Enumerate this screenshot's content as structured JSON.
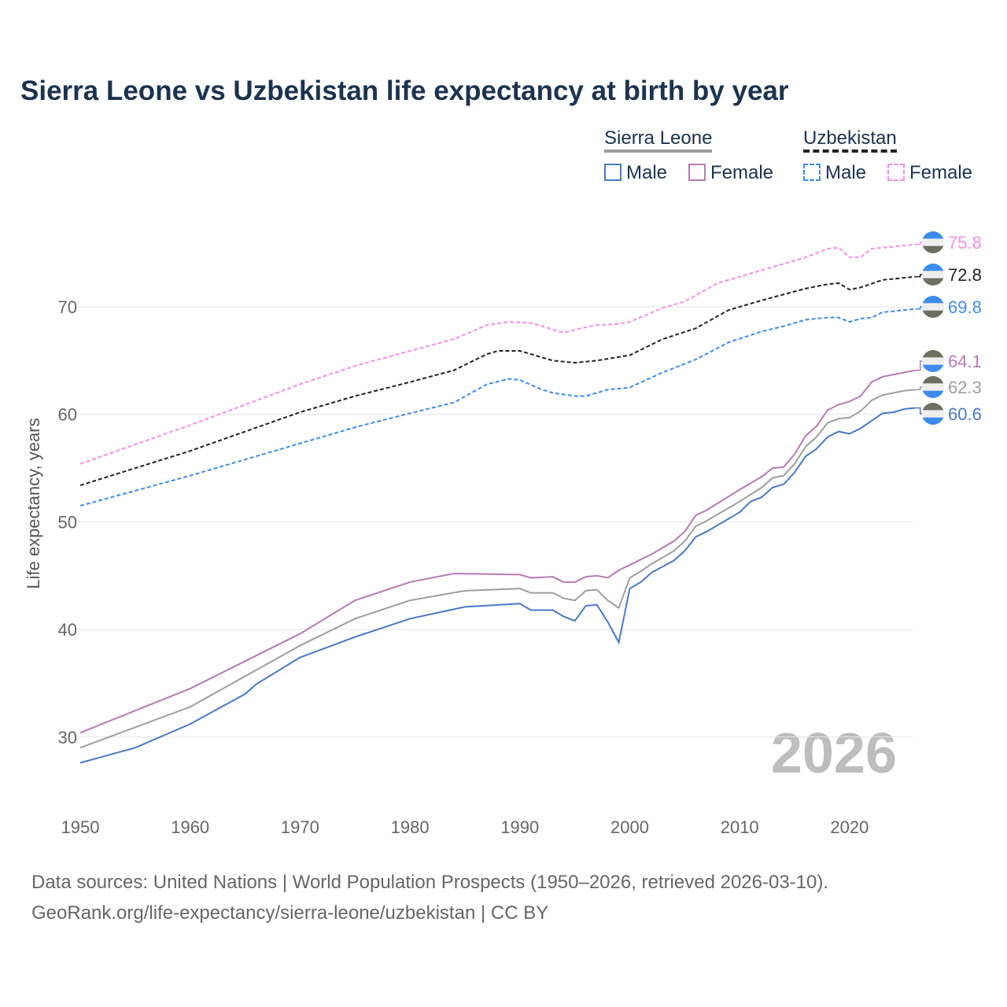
{
  "chart_data": {
    "type": "line",
    "title": "Sierra Leone vs Uzbekistan life expectancy at birth by year",
    "xlabel": "",
    "ylabel": "Life expectancy, years",
    "xlim": [
      1950,
      2026
    ],
    "ylim": [
      25,
      78
    ],
    "x_ticks": [
      1950,
      1960,
      1970,
      1980,
      1990,
      2000,
      2010,
      2020
    ],
    "y_ticks": [
      30,
      40,
      50,
      60,
      70
    ],
    "grid": true,
    "year_watermark": "2026",
    "legend": {
      "placement": "top-right",
      "groups": [
        {
          "label": "Sierra Leone",
          "color": "#9e9e9e",
          "items": [
            "Male",
            "Female"
          ]
        },
        {
          "label": "Uzbekistan",
          "color": "#222222",
          "items": [
            "Male",
            "Female"
          ]
        }
      ]
    },
    "series": [
      {
        "name": "Uzbekistan Female",
        "country": "Uzbekistan",
        "color": "#f58ee8",
        "dashed": true,
        "end_label": "75.8",
        "points": [
          [
            1950,
            55.4
          ],
          [
            1960,
            59.0
          ],
          [
            1970,
            62.8
          ],
          [
            1975,
            64.5
          ],
          [
            1980,
            65.9
          ],
          [
            1984,
            67.0
          ],
          [
            1987,
            68.3
          ],
          [
            1989,
            68.6
          ],
          [
            1991,
            68.5
          ],
          [
            1993,
            67.9
          ],
          [
            1994,
            67.6
          ],
          [
            1996,
            68.1
          ],
          [
            1997,
            68.3
          ],
          [
            1999,
            68.4
          ],
          [
            2000,
            68.6
          ],
          [
            2003,
            69.9
          ],
          [
            2005,
            70.5
          ],
          [
            2008,
            72.2
          ],
          [
            2012,
            73.4
          ],
          [
            2016,
            74.6
          ],
          [
            2018,
            75.4
          ],
          [
            2019,
            75.5
          ],
          [
            2020,
            74.6
          ],
          [
            2021,
            74.6
          ],
          [
            2022,
            75.4
          ],
          [
            2026,
            75.8
          ]
        ]
      },
      {
        "name": "Uzbekistan Total",
        "country": "Uzbekistan",
        "color": "#222222",
        "dashed": true,
        "end_label": "72.8",
        "points": [
          [
            1950,
            53.4
          ],
          [
            1960,
            56.6
          ],
          [
            1970,
            60.2
          ],
          [
            1975,
            61.7
          ],
          [
            1980,
            63.0
          ],
          [
            1984,
            64.1
          ],
          [
            1987,
            65.6
          ],
          [
            1988,
            65.9
          ],
          [
            1990,
            65.9
          ],
          [
            1993,
            65.0
          ],
          [
            1995,
            64.8
          ],
          [
            1997,
            65.0
          ],
          [
            2000,
            65.5
          ],
          [
            2003,
            67.0
          ],
          [
            2006,
            68.0
          ],
          [
            2009,
            69.7
          ],
          [
            2012,
            70.6
          ],
          [
            2016,
            71.7
          ],
          [
            2018,
            72.1
          ],
          [
            2019,
            72.2
          ],
          [
            2020,
            71.6
          ],
          [
            2021,
            71.8
          ],
          [
            2023,
            72.5
          ],
          [
            2026,
            72.8
          ]
        ]
      },
      {
        "name": "Uzbekistan Male",
        "country": "Uzbekistan",
        "color": "#3e8bf0",
        "dashed": true,
        "end_label": "69.8",
        "points": [
          [
            1950,
            51.5
          ],
          [
            1960,
            54.3
          ],
          [
            1970,
            57.3
          ],
          [
            1975,
            58.8
          ],
          [
            1980,
            60.1
          ],
          [
            1984,
            61.1
          ],
          [
            1987,
            62.8
          ],
          [
            1989,
            63.3
          ],
          [
            1990,
            63.2
          ],
          [
            1992,
            62.3
          ],
          [
            1993,
            62.0
          ],
          [
            1995,
            61.7
          ],
          [
            1996,
            61.7
          ],
          [
            1998,
            62.3
          ],
          [
            2000,
            62.5
          ],
          [
            2003,
            63.9
          ],
          [
            2006,
            65.1
          ],
          [
            2009,
            66.7
          ],
          [
            2012,
            67.7
          ],
          [
            2014,
            68.2
          ],
          [
            2016,
            68.8
          ],
          [
            2018,
            69.0
          ],
          [
            2019,
            69.0
          ],
          [
            2020,
            68.6
          ],
          [
            2021,
            68.9
          ],
          [
            2022,
            69.0
          ],
          [
            2023,
            69.5
          ],
          [
            2026,
            69.8
          ]
        ]
      },
      {
        "name": "Sierra Leone Female",
        "country": "Sierra Leone",
        "color": "#b77ab5",
        "dashed": false,
        "end_label": "64.1",
        "points": [
          [
            1950,
            30.4
          ],
          [
            1960,
            34.5
          ],
          [
            1970,
            39.6
          ],
          [
            1975,
            42.7
          ],
          [
            1980,
            44.4
          ],
          [
            1984,
            45.2
          ],
          [
            1990,
            45.1
          ],
          [
            1991,
            44.8
          ],
          [
            1993,
            44.9
          ],
          [
            1994,
            44.4
          ],
          [
            1995,
            44.4
          ],
          [
            1996,
            44.9
          ],
          [
            1997,
            45.0
          ],
          [
            1998,
            44.8
          ],
          [
            1999,
            45.5
          ],
          [
            2000,
            46.0
          ],
          [
            2002,
            47.0
          ],
          [
            2004,
            48.2
          ],
          [
            2005,
            49.1
          ],
          [
            2006,
            50.6
          ],
          [
            2007,
            51.1
          ],
          [
            2010,
            53.0
          ],
          [
            2012,
            54.2
          ],
          [
            2013,
            55.0
          ],
          [
            2014,
            55.1
          ],
          [
            2015,
            56.3
          ],
          [
            2016,
            58.0
          ],
          [
            2017,
            58.9
          ],
          [
            2018,
            60.4
          ],
          [
            2019,
            60.9
          ],
          [
            2020,
            61.2
          ],
          [
            2021,
            61.7
          ],
          [
            2022,
            63.0
          ],
          [
            2023,
            63.5
          ],
          [
            2024,
            63.7
          ],
          [
            2025,
            63.9
          ],
          [
            2026,
            64.1
          ]
        ]
      },
      {
        "name": "Sierra Leone Total",
        "country": "Sierra Leone",
        "color": "#9e9e9e",
        "dashed": false,
        "end_label": "62.3",
        "points": [
          [
            1950,
            29.0
          ],
          [
            1960,
            32.8
          ],
          [
            1970,
            38.5
          ],
          [
            1975,
            41.0
          ],
          [
            1980,
            42.7
          ],
          [
            1985,
            43.6
          ],
          [
            1990,
            43.8
          ],
          [
            1991,
            43.4
          ],
          [
            1993,
            43.4
          ],
          [
            1994,
            42.9
          ],
          [
            1995,
            42.7
          ],
          [
            1996,
            43.6
          ],
          [
            1997,
            43.7
          ],
          [
            1998,
            42.7
          ],
          [
            1999,
            42.0
          ],
          [
            2000,
            44.8
          ],
          [
            2001,
            45.4
          ],
          [
            2002,
            46.1
          ],
          [
            2004,
            47.3
          ],
          [
            2005,
            48.2
          ],
          [
            2006,
            49.6
          ],
          [
            2007,
            50.1
          ],
          [
            2010,
            51.9
          ],
          [
            2012,
            53.2
          ],
          [
            2013,
            54.1
          ],
          [
            2014,
            54.3
          ],
          [
            2015,
            55.4
          ],
          [
            2016,
            57.0
          ],
          [
            2017,
            57.9
          ],
          [
            2018,
            59.2
          ],
          [
            2019,
            59.6
          ],
          [
            2020,
            59.7
          ],
          [
            2021,
            60.3
          ],
          [
            2022,
            61.3
          ],
          [
            2023,
            61.8
          ],
          [
            2024,
            62.0
          ],
          [
            2025,
            62.2
          ],
          [
            2026,
            62.3
          ]
        ]
      },
      {
        "name": "Sierra Leone Male",
        "country": "Sierra Leone",
        "color": "#4a78c9",
        "dashed": false,
        "end_label": "60.6",
        "points": [
          [
            1950,
            27.6
          ],
          [
            1955,
            29.0
          ],
          [
            1960,
            31.2
          ],
          [
            1965,
            34.0
          ],
          [
            1966,
            34.9
          ],
          [
            1970,
            37.4
          ],
          [
            1975,
            39.3
          ],
          [
            1980,
            41.0
          ],
          [
            1985,
            42.1
          ],
          [
            1990,
            42.4
          ],
          [
            1991,
            41.8
          ],
          [
            1993,
            41.8
          ],
          [
            1994,
            41.2
          ],
          [
            1995,
            40.8
          ],
          [
            1996,
            42.2
          ],
          [
            1997,
            42.3
          ],
          [
            1998,
            40.7
          ],
          [
            1999,
            38.8
          ],
          [
            2000,
            43.8
          ],
          [
            2001,
            44.4
          ],
          [
            2002,
            45.3
          ],
          [
            2004,
            46.4
          ],
          [
            2005,
            47.3
          ],
          [
            2006,
            48.6
          ],
          [
            2007,
            49.1
          ],
          [
            2010,
            50.9
          ],
          [
            2011,
            51.9
          ],
          [
            2012,
            52.3
          ],
          [
            2013,
            53.2
          ],
          [
            2014,
            53.5
          ],
          [
            2015,
            54.6
          ],
          [
            2016,
            56.1
          ],
          [
            2017,
            56.8
          ],
          [
            2018,
            57.9
          ],
          [
            2019,
            58.4
          ],
          [
            2020,
            58.2
          ],
          [
            2021,
            58.7
          ],
          [
            2022,
            59.4
          ],
          [
            2023,
            60.1
          ],
          [
            2024,
            60.2
          ],
          [
            2025,
            60.5
          ],
          [
            2026,
            60.6
          ]
        ]
      }
    ]
  },
  "footer": {
    "line1": "Data sources: United Nations | World Population Prospects (1950–2026, retrieved 2026-03-10).",
    "line2": "GeoRank.org/life-expectancy/sierra-leone/uzbekistan | CC BY"
  }
}
